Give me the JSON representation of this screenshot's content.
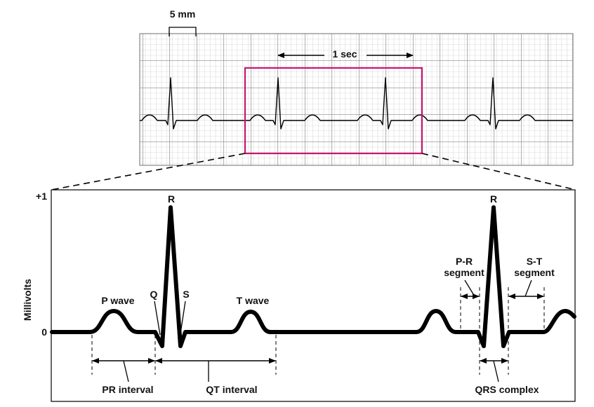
{
  "figure": {
    "scale_label": "5 mm",
    "time_label": "1 sec",
    "axis": {
      "title": "Millivolts",
      "tick_top": "+1",
      "tick_zero": "0"
    },
    "waves": {
      "p": "P wave",
      "q": "Q",
      "r": "R",
      "s": "S",
      "t": "T wave"
    },
    "segments": {
      "pr_line1": "P-R",
      "pr_line2": "segment",
      "st_line1": "S-T",
      "st_line2": "segment"
    },
    "intervals": {
      "pr": "PR interval",
      "qt": "QT interval",
      "qrs": "QRS complex"
    }
  },
  "colors": {
    "grid_minor": "#b8b8b8",
    "grid_major": "#6e6e6e",
    "trace": "#000000",
    "zoom_box": "#c8156e"
  }
}
